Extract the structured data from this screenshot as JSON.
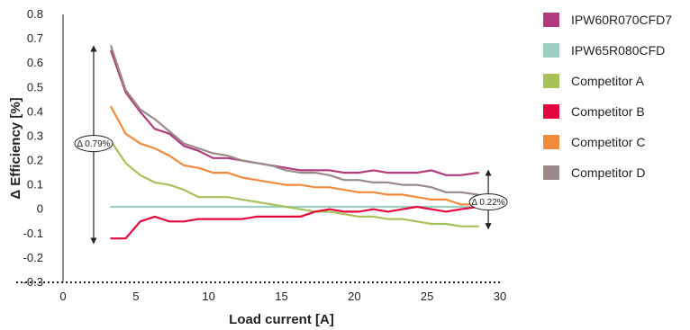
{
  "chart_data": {
    "type": "line",
    "xlabel": "Load current [A]",
    "ylabel": "Δ Efficiency [%]",
    "xlim": [
      0,
      30
    ],
    "ylim": [
      -0.3,
      0.8
    ],
    "x_ticks": [
      0,
      5,
      10,
      15,
      20,
      25,
      30
    ],
    "y_ticks": [
      -0.3,
      -0.2,
      -0.1,
      0,
      0.1,
      0.2,
      0.3,
      0.4,
      0.5,
      0.6,
      0.7,
      0.8
    ],
    "grid": false,
    "legend_position": "right",
    "x": [
      3.3,
      4.3,
      5.3,
      6.3,
      7.3,
      8.3,
      9.3,
      10.3,
      11.3,
      12.3,
      13.3,
      14.3,
      15.3,
      16.3,
      17.3,
      18.3,
      19.3,
      20.3,
      21.3,
      22.3,
      23.3,
      24.3,
      25.3,
      26.3,
      27.3,
      28.5
    ],
    "series": [
      {
        "name": "IPW60R070CFD7",
        "color": "#b03a7e",
        "values": [
          0.65,
          0.48,
          0.4,
          0.33,
          0.31,
          0.26,
          0.24,
          0.21,
          0.21,
          0.2,
          0.19,
          0.18,
          0.17,
          0.16,
          0.16,
          0.16,
          0.15,
          0.15,
          0.16,
          0.15,
          0.15,
          0.15,
          0.16,
          0.14,
          0.14,
          0.15
        ]
      },
      {
        "name": "IPW65R080CFD",
        "color": "#9ccfc2",
        "values": [
          0.01,
          0.01,
          0.01,
          0.01,
          0.01,
          0.01,
          0.01,
          0.01,
          0.01,
          0.01,
          0.01,
          0.01,
          0.01,
          0.01,
          0.01,
          0.01,
          0.01,
          0.01,
          0.01,
          0.01,
          0.01,
          0.01,
          0.01,
          0.01,
          0.01,
          0.01
        ]
      },
      {
        "name": "Competitor A",
        "color": "#a6c15a",
        "values": [
          0.28,
          0.19,
          0.14,
          0.11,
          0.1,
          0.08,
          0.05,
          0.05,
          0.05,
          0.04,
          0.03,
          0.02,
          0.01,
          0.0,
          -0.01,
          -0.01,
          -0.02,
          -0.03,
          -0.03,
          -0.04,
          -0.04,
          -0.05,
          -0.06,
          -0.06,
          -0.07,
          -0.07
        ]
      },
      {
        "name": "Competitor B",
        "color": "#e3063c",
        "values": [
          -0.12,
          -0.12,
          -0.05,
          -0.03,
          -0.05,
          -0.05,
          -0.04,
          -0.04,
          -0.04,
          -0.04,
          -0.03,
          -0.03,
          -0.03,
          -0.03,
          -0.01,
          0.0,
          -0.01,
          -0.01,
          0.0,
          -0.01,
          0.0,
          0.01,
          0.0,
          -0.01,
          0.0,
          0.01
        ]
      },
      {
        "name": "Competitor C",
        "color": "#f08a3c",
        "values": [
          0.42,
          0.31,
          0.27,
          0.25,
          0.22,
          0.18,
          0.17,
          0.15,
          0.15,
          0.13,
          0.12,
          0.11,
          0.1,
          0.1,
          0.09,
          0.09,
          0.08,
          0.07,
          0.07,
          0.06,
          0.06,
          0.05,
          0.04,
          0.04,
          0.02,
          0.02
        ]
      },
      {
        "name": "Competitor D",
        "color": "#9b8b88",
        "values": [
          0.67,
          0.49,
          0.41,
          0.37,
          0.32,
          0.27,
          0.25,
          0.23,
          0.22,
          0.2,
          0.19,
          0.18,
          0.16,
          0.15,
          0.15,
          0.14,
          0.12,
          0.12,
          0.11,
          0.11,
          0.1,
          0.1,
          0.09,
          0.07,
          0.07,
          0.06
        ]
      }
    ],
    "annotations": [
      {
        "label": "Δ 0.79%",
        "x": 2.1,
        "y_from": -0.13,
        "y_to": 0.66,
        "text_y": 0.27
      },
      {
        "label": "Δ 0.22%",
        "x": 29.2,
        "y_from": -0.07,
        "y_to": 0.15,
        "text_y": 0.03
      }
    ]
  }
}
